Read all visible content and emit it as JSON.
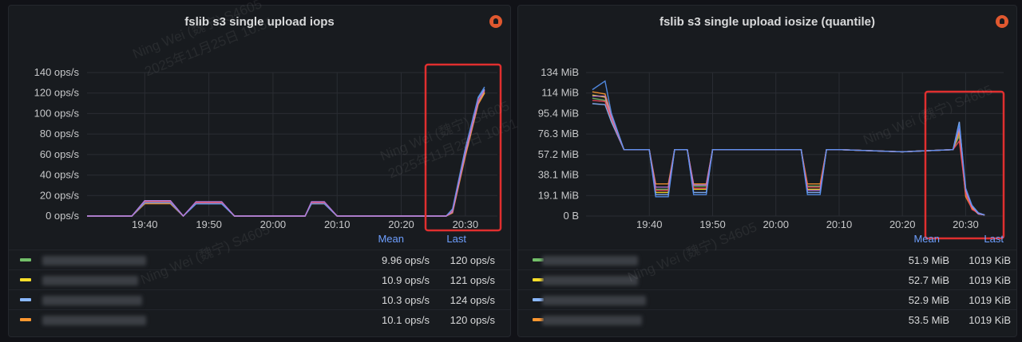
{
  "chart_data": [
    {
      "type": "line",
      "title": "fslib s3 single upload iops",
      "x_ticks": [
        "19:40",
        "19:50",
        "20:00",
        "20:10",
        "20:20",
        "20:30"
      ],
      "y_ticks": [
        "0 ops/s",
        "20 ops/s",
        "40 ops/s",
        "60 ops/s",
        "80 ops/s",
        "100 ops/s",
        "120 ops/s",
        "140 ops/s"
      ],
      "ylim": [
        0,
        140
      ],
      "x": [
        "19:31",
        "19:38",
        "19:40",
        "19:42",
        "19:44",
        "19:46",
        "19:48",
        "19:50",
        "19:52",
        "19:54",
        "19:56",
        "20:00",
        "20:05",
        "20:06",
        "20:08",
        "20:10",
        "20:12",
        "20:20",
        "20:25",
        "20:27",
        "20:28",
        "20:30",
        "20:32",
        "20:33"
      ],
      "series": [
        {
          "color": "#73bf69",
          "values": [
            0,
            0,
            14,
            14,
            14,
            0,
            12,
            12,
            12,
            0,
            0,
            0,
            0,
            12,
            12,
            0,
            0,
            0,
            0,
            0,
            4,
            60,
            110,
            120
          ]
        },
        {
          "color": "#fade2a",
          "values": [
            0,
            0,
            13,
            13,
            13,
            0,
            13,
            13,
            13,
            0,
            0,
            0,
            0,
            13,
            13,
            0,
            0,
            0,
            0,
            0,
            6,
            65,
            112,
            121
          ]
        },
        {
          "color": "#8ab8ff",
          "values": [
            0,
            0,
            15,
            15,
            15,
            0,
            12,
            12,
            12,
            0,
            0,
            0,
            0,
            13,
            13,
            0,
            0,
            0,
            0,
            0,
            5,
            62,
            115,
            124
          ]
        },
        {
          "color": "#ff9830",
          "values": [
            0,
            0,
            12,
            12,
            12,
            0,
            13,
            13,
            13,
            0,
            0,
            0,
            0,
            12,
            12,
            0,
            0,
            0,
            0,
            0,
            3,
            58,
            109,
            120
          ]
        },
        {
          "color": "#f2495c",
          "values": [
            0,
            0,
            14,
            14,
            14,
            0,
            13,
            13,
            13,
            0,
            0,
            0,
            0,
            13,
            13,
            0,
            0,
            0,
            0,
            0,
            5,
            63,
            113,
            122
          ]
        },
        {
          "color": "#5794f2",
          "values": [
            0,
            0,
            13,
            13,
            13,
            0,
            12,
            12,
            12,
            0,
            0,
            0,
            0,
            12,
            12,
            0,
            0,
            0,
            0,
            0,
            7,
            66,
            116,
            126
          ]
        },
        {
          "color": "#b877d9",
          "values": [
            0,
            0,
            15,
            15,
            15,
            0,
            14,
            14,
            14,
            0,
            0,
            0,
            0,
            14,
            14,
            0,
            0,
            0,
            0,
            0,
            4,
            61,
            111,
            123
          ]
        }
      ],
      "legend": {
        "headers": [
          "Mean",
          "Last"
        ],
        "rows": [
          {
            "color": "#73bf69",
            "mean": "9.96 ops/s",
            "last": "120 ops/s"
          },
          {
            "color": "#fade2a",
            "mean": "10.9 ops/s",
            "last": "121 ops/s"
          },
          {
            "color": "#8ab8ff",
            "mean": "10.3 ops/s",
            "last": "124 ops/s"
          },
          {
            "color": "#ff9830",
            "mean": "10.1 ops/s",
            "last": "120 ops/s"
          }
        ]
      },
      "highlight_box": true,
      "highlight_color": "#e02f2f"
    },
    {
      "type": "line",
      "title": "fslib s3 single upload iosize (quantile)",
      "x_ticks": [
        "19:40",
        "19:50",
        "20:00",
        "20:10",
        "20:20",
        "20:30"
      ],
      "y_ticks": [
        "0 B",
        "19.1 MiB",
        "38.1 MiB",
        "57.2 MiB",
        "76.3 MiB",
        "95.4 MiB",
        "114 MiB",
        "134 MiB"
      ],
      "ylim": [
        0,
        134
      ],
      "x": [
        "19:31",
        "19:33",
        "19:34",
        "19:36",
        "19:40",
        "19:41",
        "19:43",
        "19:44",
        "19:46",
        "19:47",
        "19:49",
        "19:50",
        "20:04",
        "20:05",
        "20:07",
        "20:08",
        "20:10",
        "20:20",
        "20:28",
        "20:29",
        "20:30",
        "20:31",
        "20:32",
        "20:33"
      ],
      "series": [
        {
          "color": "#73bf69",
          "values": [
            110,
            108,
            90,
            62,
            62,
            25,
            25,
            62,
            62,
            28,
            28,
            62,
            62,
            28,
            28,
            62,
            62,
            60,
            62,
            75,
            20,
            10,
            3,
            1
          ]
        },
        {
          "color": "#fade2a",
          "values": [
            113,
            111,
            92,
            62,
            62,
            22,
            22,
            62,
            62,
            25,
            25,
            62,
            62,
            25,
            25,
            62,
            62,
            60,
            62,
            80,
            25,
            8,
            2,
            1
          ]
        },
        {
          "color": "#8ab8ff",
          "values": [
            105,
            104,
            88,
            62,
            62,
            20,
            20,
            62,
            62,
            22,
            22,
            62,
            62,
            22,
            22,
            62,
            62,
            60,
            62,
            88,
            22,
            9,
            3,
            1
          ]
        },
        {
          "color": "#ff9830",
          "values": [
            116,
            114,
            95,
            62,
            62,
            30,
            30,
            62,
            62,
            30,
            30,
            62,
            62,
            30,
            30,
            62,
            62,
            60,
            62,
            78,
            18,
            7,
            2,
            1
          ]
        },
        {
          "color": "#f2495c",
          "values": [
            108,
            107,
            91,
            62,
            62,
            24,
            24,
            62,
            62,
            26,
            26,
            62,
            62,
            27,
            27,
            62,
            62,
            60,
            62,
            70,
            21,
            6,
            3,
            1
          ]
        },
        {
          "color": "#b877d9",
          "values": [
            112,
            112,
            93,
            62,
            62,
            27,
            27,
            62,
            62,
            29,
            29,
            62,
            62,
            24,
            24,
            62,
            62,
            60,
            62,
            82,
            24,
            9,
            2,
            1
          ]
        },
        {
          "color": "#5794f2",
          "values": [
            118,
            126,
            96,
            62,
            62,
            18,
            18,
            62,
            62,
            20,
            20,
            62,
            62,
            20,
            20,
            62,
            62,
            60,
            62,
            86,
            26,
            10,
            3,
            1
          ]
        }
      ],
      "legend": {
        "headers": [
          "Mean",
          "Last"
        ],
        "rows": [
          {
            "color": "#73bf69",
            "mean": "51.9 MiB",
            "last": "1019 KiB"
          },
          {
            "color": "#fade2a",
            "mean": "52.7 MiB",
            "last": "1019 KiB"
          },
          {
            "color": "#8ab8ff",
            "mean": "52.9 MiB",
            "last": "1019 KiB"
          },
          {
            "color": "#ff9830",
            "mean": "53.5 MiB",
            "last": "1019 KiB"
          }
        ]
      },
      "highlight_box": true,
      "highlight_color": "#e02f2f"
    }
  ],
  "watermark": {
    "lines": [
      "Ning Wei (魏宁) S4605",
      "2025年11月25日 10:51"
    ]
  }
}
